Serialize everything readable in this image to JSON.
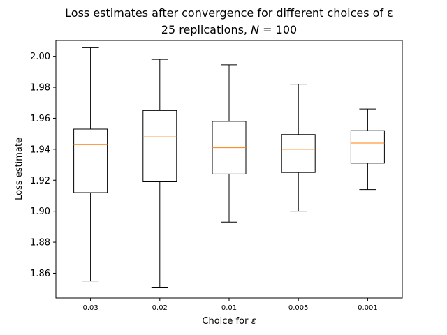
{
  "chart_data": {
    "type": "boxplot",
    "title": "Loss estimates after convergence for different choices of ε",
    "subtitle_prefix": "25 replications, ",
    "subtitle_var": "N",
    "subtitle_suffix": " = 100",
    "xlabel_prefix": "Choice for ",
    "xlabel_var": "ε",
    "ylabel": "Loss estimate",
    "ylim": [
      1.844,
      2.0102
    ],
    "yticks": [
      "1.86",
      "1.88",
      "1.90",
      "1.92",
      "1.94",
      "1.96",
      "1.98",
      "2.00"
    ],
    "categories": [
      "0.03",
      "0.02",
      "0.01",
      "0.005",
      "0.001"
    ],
    "boxes": [
      {
        "whisker_low": 1.855,
        "q1": 1.912,
        "median": 1.943,
        "q3": 1.953,
        "whisker_high": 2.0055
      },
      {
        "whisker_low": 1.851,
        "q1": 1.919,
        "median": 1.948,
        "q3": 1.965,
        "whisker_high": 1.998
      },
      {
        "whisker_low": 1.893,
        "q1": 1.924,
        "median": 1.941,
        "q3": 1.958,
        "whisker_high": 1.9945
      },
      {
        "whisker_low": 1.9,
        "q1": 1.925,
        "median": 1.94,
        "q3": 1.9495,
        "whisker_high": 1.982
      },
      {
        "whisker_low": 1.914,
        "q1": 1.931,
        "median": 1.944,
        "q3": 1.952,
        "whisker_high": 1.966
      }
    ],
    "colors": {
      "box": "#000000",
      "median": "#ff7f0e"
    },
    "grid": false
  }
}
